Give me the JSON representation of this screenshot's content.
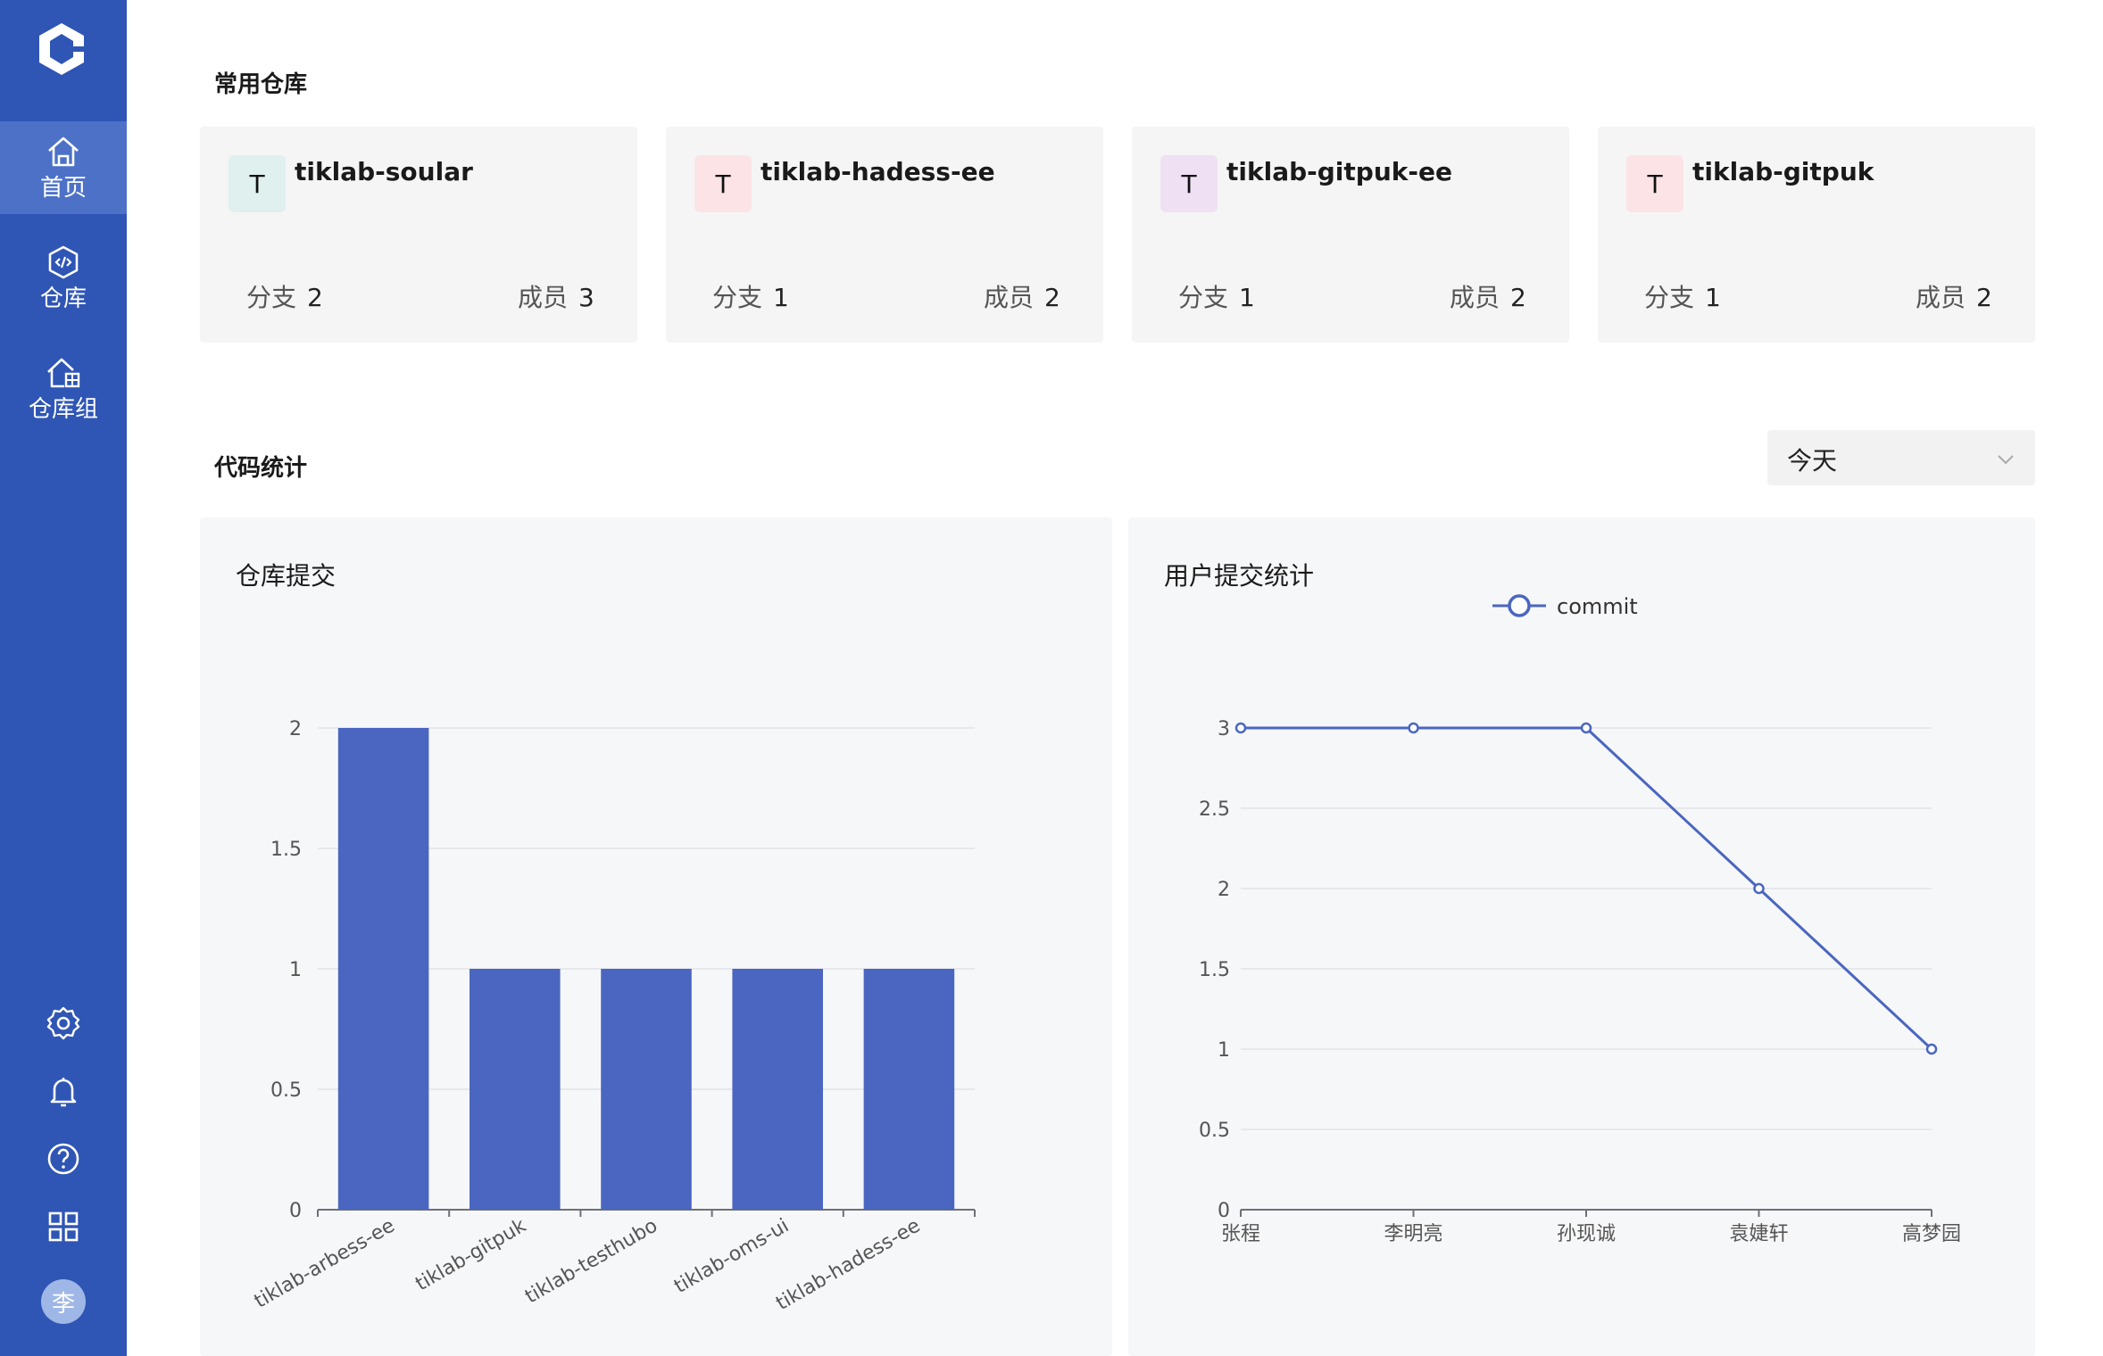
{
  "sidebar": {
    "items": [
      {
        "label": "首页",
        "icon": "home-icon",
        "active": true
      },
      {
        "label": "仓库",
        "icon": "repository-icon",
        "active": false
      },
      {
        "label": "仓库组",
        "icon": "repository-group-icon",
        "active": false
      }
    ],
    "bottom_icons": [
      "settings-icon",
      "bell-icon",
      "help-icon",
      "apps-icon"
    ],
    "avatar_text": "李",
    "colors": {
      "background": "#2f55b5",
      "active": "#4d71c7"
    }
  },
  "favorites": {
    "title": "常用仓库",
    "branch_label": "分支",
    "member_label": "成员",
    "repos": [
      {
        "initial": "T",
        "name": "tiklab-soular",
        "branches": "2",
        "members": "3",
        "badge_color": "#dff0ee"
      },
      {
        "initial": "T",
        "name": "tiklab-hadess-ee",
        "branches": "1",
        "members": "2",
        "badge_color": "#fbe3e6"
      },
      {
        "initial": "T",
        "name": "tiklab-gitpuk-ee",
        "branches": "1",
        "members": "2",
        "badge_color": "#efe0f3"
      },
      {
        "initial": "T",
        "name": "tiklab-gitpuk",
        "branches": "1",
        "members": "2",
        "badge_color": "#fbe3e6"
      }
    ]
  },
  "stats": {
    "title": "代码统计",
    "period": "今天"
  },
  "chart_data": [
    {
      "type": "bar",
      "title": "仓库提交",
      "categories": [
        "tiklab-arbess-ee",
        "tiklab-gitpuk",
        "tiklab-testhubo",
        "tiklab-oms-ui",
        "tiklab-hadess-ee"
      ],
      "values": [
        2,
        1,
        1,
        1,
        1
      ],
      "ylim": [
        0,
        2
      ],
      "yticks": [
        "0",
        "0.5",
        "1",
        "1.5",
        "2"
      ],
      "grid": true,
      "color": "#4a66c0"
    },
    {
      "type": "line",
      "title": "用户提交统计",
      "categories": [
        "张程",
        "李明亮",
        "孙现诚",
        "袁婕轩",
        "高梦园"
      ],
      "series": [
        {
          "name": "commit",
          "values": [
            3,
            3,
            3,
            2,
            1
          ]
        }
      ],
      "ylim": [
        0,
        3
      ],
      "yticks": [
        "0",
        "0.5",
        "1",
        "1.5",
        "2",
        "2.5",
        "3"
      ],
      "legend": "top-center",
      "grid": true,
      "color": "#4a66c0"
    }
  ]
}
